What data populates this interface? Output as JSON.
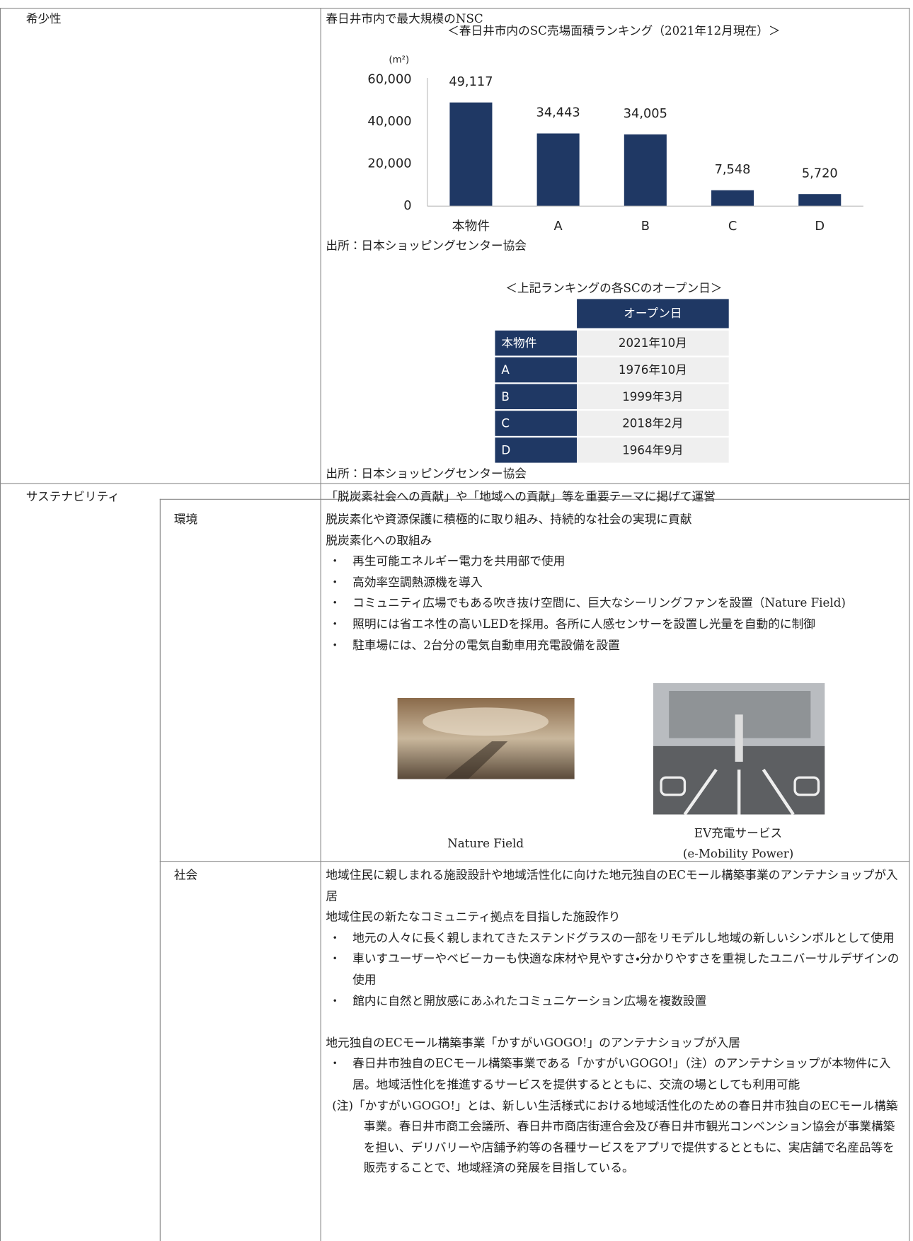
{
  "scarcity": {
    "label": "希少性",
    "lead": "春日井市内で最大規模のNSC",
    "chart_data": {
      "type": "bar",
      "title": "＜春日井市内のSC売場面積ランキング（2021年12月現在）＞",
      "y_unit": "(m²)",
      "categories": [
        "本物件",
        "A",
        "B",
        "C",
        "D"
      ],
      "values": [
        49117,
        34443,
        34005,
        7548,
        5720
      ],
      "value_labels": [
        "49,117",
        "34,443",
        "34,005",
        "7,548",
        "5,720"
      ],
      "color": "#1f3864",
      "ylim": [
        0,
        60000
      ],
      "yticks": [
        0,
        {
          "value": 20000,
          "label": "20,000"
        },
        {
          "value": 40000,
          "label": "40,000"
        },
        {
          "value": 60000,
          "label": "60,000"
        }
      ],
      "grid": false
    },
    "chart_source": "出所：日本ショッピングセンター協会",
    "table": {
      "title": "＜上記ランキングの各SCのオープン日＞",
      "header": "オープン日",
      "rows": [
        [
          "本物件",
          "2021年10月"
        ],
        [
          "A",
          "1976年10月"
        ],
        [
          "B",
          "1999年3月"
        ],
        [
          "C",
          "2018年2月"
        ],
        [
          "D",
          "1964年9月"
        ]
      ]
    },
    "table_source": "出所：日本ショッピングセンター協会"
  },
  "sustainability": {
    "label": "サステナビリティ",
    "lead": "「脱炭素社会への貢献」や「地域への貢献」等を重要テーマに掲げて運営",
    "environment": {
      "label": "環境",
      "lines": [
        "脱炭素化や資源保護に積極的に取り組み、持続的な社会の実現に貢献",
        "脱炭素化への取組み"
      ],
      "bullets": [
        "再生可能エネルギー電力を共用部で使用",
        "高効率空調熱源機を導入",
        "コミュニティ広場でもある吹き抜け空間に、巨大なシーリングファンを設置（Nature Field)",
        "照明には省エネ性の高いLEDを採用。各所に人感センサーを設置し光量を自動的に制御",
        "駐車場には、2台分の電気自動車用充電設備を設置"
      ],
      "photos": [
        {
          "caption": "Nature Field"
        },
        {
          "caption": "EV充電サービス\n(e-Mobility Power)"
        }
      ]
    },
    "society": {
      "label": "社会",
      "lines": [
        "地域住民に親しまれる施設設計や地域活性化に向けた地元独自のECモール構築事業のアンテナショップが入居",
        "地域住民の新たなコミュニティ拠点を目指した施設作り"
      ],
      "bullets": [
        "地元の人々に長く親しまれてきたステンドグラスの一部をリモデルし地域の新しいシンボルとして使用",
        "車いすユーザーやベビーカーも快適な床材や見やすさ・分かりやすさを重視したユニバーサルデザインの使用",
        "館内に自然と開放感にあふれたコミュニケーション広場を複数設置"
      ],
      "heading2": "地元独自のECモール構築事業「かすがいGOGO!」のアンテナショップが入居",
      "bullets2": [
        "春日井市独自のECモール構築事業である「かすがいGOGO!」（注）のアンテナショップが本物件に入居。地域活性化を推進するサービスを提供するとともに、交流の場としても利用可能"
      ],
      "note": "(注)「かすがいGOGO!」とは、新しい生活様式における地域活性化のための春日井市独自のECモール構築事業。春日井市商工会議所、春日井市商店街連合会及び春日井市観光コンベンション協会が事業構築を担い、デリバリーや店舗予約等の各種サービスをアプリで提供するとともに、実店舗で名産品等を販売することで、地域経済の発展を目指している。"
    }
  }
}
